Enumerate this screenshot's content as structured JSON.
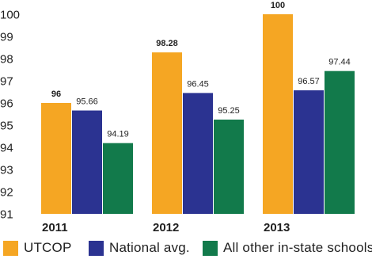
{
  "chart_data": {
    "type": "bar",
    "categories": [
      "2011",
      "2012",
      "2013"
    ],
    "series": [
      {
        "name": "UTCOP",
        "values": [
          96,
          98.28,
          100
        ],
        "labels": [
          "96",
          "98.28",
          "100"
        ],
        "label_bold": true,
        "color": "#F5A623"
      },
      {
        "name": "National avg.",
        "values": [
          95.66,
          96.45,
          96.57
        ],
        "labels": [
          "95.66",
          "96.45",
          "96.57"
        ],
        "label_bold": false,
        "color": "#2B3391"
      },
      {
        "name": "All other in-state schools",
        "values": [
          94.19,
          95.25,
          97.44
        ],
        "labels": [
          "94.19",
          "95.25",
          "97.44"
        ],
        "label_bold": false,
        "color": "#127A4B"
      }
    ],
    "ylim": [
      91,
      100
    ],
    "yticks": [
      "91",
      "92",
      "93",
      "94",
      "95",
      "96",
      "97",
      "98",
      "99",
      "100"
    ],
    "grid": false,
    "legend": "bottom",
    "title": "",
    "xlabel": "",
    "ylabel": ""
  }
}
